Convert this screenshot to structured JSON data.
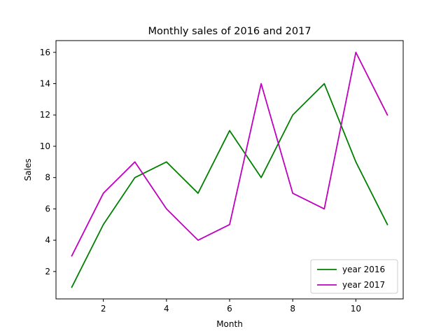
{
  "chart_data": {
    "type": "line",
    "title": "Monthly sales of 2016 and 2017",
    "xlabel": "Month",
    "ylabel": "Sales",
    "x": [
      1,
      2,
      3,
      4,
      5,
      6,
      7,
      8,
      9,
      10,
      11
    ],
    "xlim": [
      0.5,
      11.5
    ],
    "ylim": [
      0.25,
      16.75
    ],
    "xticks": [
      2,
      4,
      6,
      8,
      10
    ],
    "yticks": [
      2,
      4,
      6,
      8,
      10,
      12,
      14,
      16
    ],
    "grid": false,
    "legend_position": "lower-right",
    "series": [
      {
        "name": "year 2016",
        "color": "#008000",
        "values": [
          1,
          5,
          8,
          9,
          7,
          11,
          8,
          12,
          14,
          9,
          5
        ]
      },
      {
        "name": "year 2017",
        "color": "#bf00bf",
        "values": [
          3,
          7,
          9,
          6,
          4,
          5,
          14,
          7,
          6,
          16,
          12
        ]
      }
    ]
  }
}
